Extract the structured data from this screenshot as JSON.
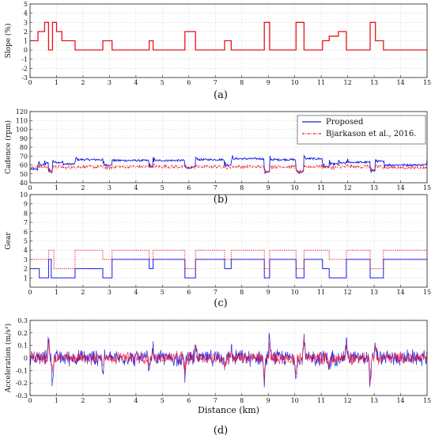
{
  "chart_data": [
    {
      "id": "a",
      "type": "line",
      "caption": "(a)",
      "ylabel": "Slope (%)",
      "xlabel": "",
      "xlim": [
        0,
        15
      ],
      "ylim": [
        -3,
        5
      ],
      "xticks": [
        0,
        1,
        2,
        3,
        4,
        5,
        6,
        7,
        8,
        9,
        10,
        11,
        12,
        13,
        14,
        15
      ],
      "yticks": [
        -3,
        -2,
        -1,
        0,
        1,
        2,
        3,
        4,
        5
      ],
      "grid": true,
      "series": [
        {
          "name": "",
          "color": "#e8141c",
          "style": "step",
          "x": [
            0,
            0.3,
            0.3,
            0.55,
            0.55,
            0.7,
            0.7,
            0.85,
            0.85,
            1.0,
            1.0,
            1.2,
            1.2,
            1.7,
            1.7,
            2.75,
            2.75,
            3.1,
            3.1,
            4.5,
            4.5,
            4.65,
            4.65,
            5.85,
            5.85,
            6.25,
            6.25,
            7.35,
            7.35,
            7.6,
            7.6,
            8.85,
            8.85,
            9.05,
            9.05,
            10.05,
            10.05,
            10.35,
            10.35,
            11.05,
            11.05,
            11.3,
            11.3,
            11.65,
            11.65,
            11.95,
            11.95,
            12.85,
            12.85,
            13.05,
            13.05,
            13.35,
            13.35,
            15
          ],
          "y": [
            1,
            1,
            2,
            2,
            3,
            3,
            0,
            0,
            3,
            3,
            2,
            2,
            1,
            1,
            0,
            0,
            1,
            1,
            0,
            0,
            1,
            1,
            0,
            0,
            2,
            2,
            0,
            0,
            1,
            1,
            0,
            0,
            3,
            3,
            0,
            0,
            3,
            3,
            0,
            0,
            1,
            1,
            1.5,
            1.5,
            2,
            2,
            0,
            0,
            3,
            3,
            1,
            1,
            0,
            0
          ]
        }
      ]
    },
    {
      "id": "b",
      "type": "line",
      "caption": "(b)",
      "ylabel": "Cadence (rpm)",
      "xlabel": "",
      "xlim": [
        0,
        15
      ],
      "ylim": [
        40,
        120
      ],
      "xticks": [
        0,
        1,
        2,
        3,
        4,
        5,
        6,
        7,
        8,
        9,
        10,
        11,
        12,
        13,
        14,
        15
      ],
      "yticks": [
        40,
        50,
        60,
        70,
        80,
        90,
        100,
        110,
        120
      ],
      "grid": true,
      "legend": "top-right",
      "series": [
        {
          "name": "Proposed",
          "color": "#1a1ae6",
          "style": "solid",
          "x": [
            0,
            0.3,
            0.55,
            0.7,
            0.85,
            1.2,
            1.7,
            2.75,
            3.1,
            4.5,
            4.65,
            5.85,
            6.25,
            7.35,
            7.6,
            8.85,
            9.05,
            10.05,
            10.35,
            11.05,
            11.3,
            11.65,
            11.95,
            12.85,
            13.05,
            13.35,
            15
          ],
          "y": [
            55,
            60,
            62,
            52,
            63,
            61,
            66,
            60,
            65,
            58,
            65,
            57,
            66,
            60,
            67,
            52,
            66,
            52,
            67,
            58,
            61,
            62,
            63,
            54,
            64,
            60,
            66
          ]
        },
        {
          "name": "Bjarkason et al., 2016.",
          "color": "#e8141c",
          "style": "dashdot",
          "x": [
            0,
            0.3,
            0.55,
            0.7,
            0.85,
            1.2,
            1.7,
            2.75,
            3.1,
            4.5,
            4.65,
            5.85,
            6.25,
            7.35,
            7.6,
            8.85,
            9.05,
            10.05,
            10.35,
            11.05,
            11.3,
            11.65,
            11.95,
            12.85,
            13.05,
            13.35,
            15
          ],
          "y": [
            58,
            58,
            57,
            53,
            58,
            57,
            58,
            57,
            58,
            58,
            58,
            57,
            58,
            57,
            58,
            53,
            58,
            52,
            58,
            58,
            57,
            58,
            58,
            53,
            58,
            57,
            58
          ]
        }
      ]
    },
    {
      "id": "c",
      "type": "line",
      "caption": "(c)",
      "ylabel": "Gear",
      "xlabel": "",
      "xlim": [
        0,
        15
      ],
      "ylim": [
        0,
        10
      ],
      "xticks": [
        0,
        1,
        2,
        3,
        4,
        5,
        6,
        7,
        8,
        9,
        10,
        11,
        12,
        13,
        14,
        15
      ],
      "yticks": [
        1,
        2,
        3,
        4,
        5,
        6,
        7,
        8,
        9,
        10
      ],
      "grid": true,
      "series": [
        {
          "name": "Proposed",
          "color": "#1a1ae6",
          "style": "step",
          "x": [
            0,
            0.35,
            0.35,
            0.7,
            0.7,
            0.8,
            0.8,
            1.7,
            1.7,
            2.75,
            2.75,
            3.1,
            3.1,
            4.5,
            4.5,
            4.65,
            4.65,
            5.85,
            5.85,
            6.25,
            6.25,
            7.35,
            7.35,
            7.6,
            7.6,
            8.85,
            8.85,
            9.05,
            9.05,
            10.05,
            10.05,
            10.35,
            10.35,
            11.05,
            11.05,
            11.3,
            11.3,
            11.95,
            11.95,
            12.85,
            12.85,
            13.35,
            13.35,
            15
          ],
          "y": [
            2,
            2,
            1,
            1,
            3,
            3,
            1,
            1,
            2,
            2,
            1,
            1,
            3,
            3,
            2,
            2,
            3,
            3,
            1,
            1,
            3,
            3,
            2,
            2,
            3,
            3,
            1,
            1,
            3,
            3,
            1,
            1,
            3,
            3,
            2,
            2,
            1,
            1,
            3,
            3,
            1,
            1,
            3,
            3
          ]
        },
        {
          "name": "Bjarkason et al., 2016.",
          "color": "#e8141c",
          "style": "dotted",
          "x": [
            0,
            0.7,
            0.7,
            0.9,
            0.9,
            1.7,
            1.7,
            2.75,
            2.75,
            3.1,
            3.1,
            4.5,
            4.5,
            4.65,
            4.65,
            5.85,
            5.85,
            6.25,
            6.25,
            7.35,
            7.35,
            7.6,
            7.6,
            8.85,
            8.85,
            9.05,
            9.05,
            10.05,
            10.05,
            10.35,
            10.35,
            11.3,
            11.3,
            11.95,
            11.95,
            12.85,
            12.85,
            13.35,
            13.35,
            15
          ],
          "y": [
            3,
            3,
            4,
            4,
            2,
            2,
            4,
            4,
            3,
            3,
            4,
            4,
            3,
            3,
            4,
            4,
            2,
            2,
            4,
            4,
            3,
            3,
            4,
            4,
            2,
            2,
            4,
            4,
            2,
            2,
            4,
            4,
            3,
            3,
            4,
            4,
            2,
            2,
            4,
            4
          ]
        }
      ]
    },
    {
      "id": "d",
      "type": "line",
      "caption": "(d)",
      "ylabel": "Acceleration (m/s²)",
      "xlabel": "Distance (km)",
      "xlim": [
        0,
        15
      ],
      "ylim": [
        -0.3,
        0.3
      ],
      "xticks": [
        0,
        1,
        2,
        3,
        4,
        5,
        6,
        7,
        8,
        9,
        10,
        11,
        12,
        13,
        14,
        15
      ],
      "yticks": [
        -0.3,
        -0.2,
        -0.1,
        0,
        0.1,
        0.2,
        0.3
      ],
      "grid": true,
      "series": [
        {
          "name": "Proposed",
          "color": "#1a1ae6",
          "style": "noise",
          "band": 0.05,
          "spikes_x": [
            0.7,
            0.85,
            2.75,
            4.5,
            4.65,
            5.85,
            6.25,
            7.35,
            7.6,
            8.85,
            9.05,
            10.05,
            10.35,
            11.3,
            11.95,
            12.85,
            13.05
          ],
          "spikes_y": [
            0.24,
            -0.23,
            -0.12,
            -0.12,
            0.12,
            -0.2,
            0.16,
            -0.12,
            0.13,
            -0.25,
            0.2,
            -0.2,
            0.22,
            -0.12,
            0.17,
            -0.25,
            0.13
          ]
        },
        {
          "name": "Bjarkason et al., 2016.",
          "color": "#ff1020",
          "style": "noise",
          "band": 0.04,
          "spikes_x": [
            0.7,
            0.85,
            2.75,
            4.5,
            4.65,
            5.85,
            6.25,
            7.35,
            7.6,
            8.85,
            9.05,
            10.05,
            10.35,
            11.3,
            11.95,
            12.85,
            13.05
          ],
          "spikes_y": [
            0.17,
            -0.15,
            -0.08,
            -0.08,
            0.08,
            -0.15,
            0.12,
            -0.08,
            0.1,
            -0.18,
            0.15,
            -0.15,
            0.25,
            -0.1,
            0.12,
            -0.2,
            0.1
          ]
        }
      ]
    }
  ]
}
